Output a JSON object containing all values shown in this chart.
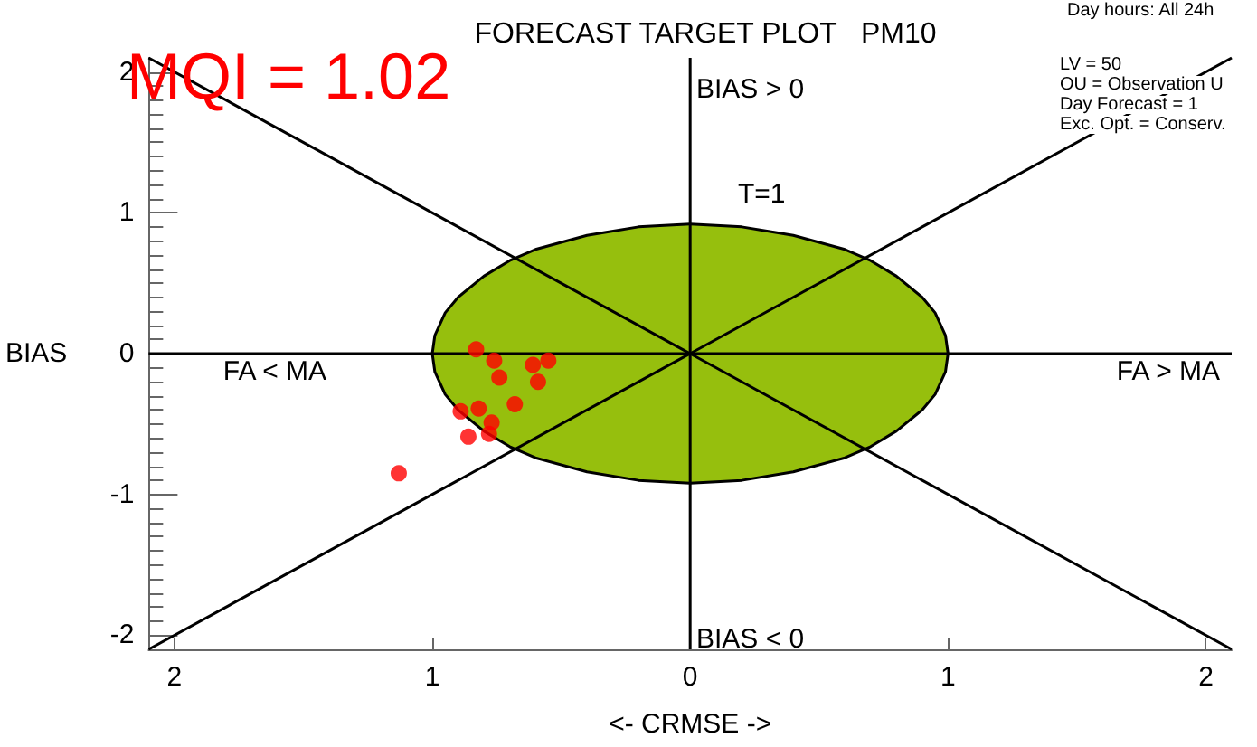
{
  "chart_data": {
    "type": "scatter",
    "title": "FORECAST TARGET PLOT   PM10",
    "xlabel": "<- CRMSE ->",
    "ylabel": "BIAS",
    "annotations": [
      "MQI = 1.02",
      "BIAS > 0",
      "T=1",
      "FA < MA",
      "FA > MA",
      "BIAS < 0",
      "LV = 50",
      "OU = Observation U",
      "Day Forecast = 1",
      "Exc. Opt. = Conserv.",
      "Day hours: All 24h"
    ],
    "xlim": [
      -2.1,
      2.1
    ],
    "ylim": [
      -2.1,
      2.1
    ],
    "xticks": [
      {
        "value": -2,
        "label": "2"
      },
      {
        "value": -1,
        "label": "1"
      },
      0,
      1,
      2
    ],
    "yticks": [
      -2,
      -1,
      0,
      1,
      2
    ],
    "grid": false,
    "series": [
      {
        "type": "area",
        "color": "#96bf0d",
        "marker": "none",
        "x": [
          -1,
          -0.99,
          -0.95,
          -0.9,
          -0.8,
          -0.7,
          -0.6,
          -0.4,
          -0.2,
          0,
          0.2,
          0.4,
          0.6,
          0.7,
          0.8,
          0.9,
          0.95,
          0.99,
          1
        ],
        "values": [
          0,
          0.13,
          0.29,
          0.4,
          0.55,
          0.66,
          0.74,
          0.84,
          0.9,
          0.92,
          0.9,
          0.84,
          0.74,
          0.66,
          0.55,
          0.4,
          0.29,
          0.13,
          0
        ]
      },
      {
        "type": "area",
        "color": "#96bf0d",
        "marker": "none",
        "x": [
          -1,
          -0.99,
          -0.95,
          -0.9,
          -0.8,
          -0.7,
          -0.6,
          -0.4,
          -0.2,
          0,
          0.2,
          0.4,
          0.6,
          0.7,
          0.8,
          0.9,
          0.95,
          0.99,
          1
        ],
        "values": [
          0,
          -0.13,
          -0.29,
          -0.4,
          -0.55,
          -0.66,
          -0.74,
          -0.84,
          -0.9,
          -0.92,
          -0.9,
          -0.84,
          -0.74,
          -0.66,
          -0.55,
          -0.4,
          -0.29,
          -0.13,
          0
        ]
      },
      {
        "type": "line",
        "color": "#000000",
        "marker": "none",
        "x": [
          -2.1,
          2.1
        ],
        "values": [
          -2.1,
          2.1
        ]
      },
      {
        "type": "line",
        "color": "#000000",
        "marker": "none",
        "x": [
          -2.1,
          2.1
        ],
        "values": [
          2.1,
          -2.1
        ]
      },
      {
        "type": "line",
        "color": "#000000",
        "marker": "none",
        "x": [
          0,
          0
        ],
        "values": [
          -2.1,
          2.1
        ]
      },
      {
        "type": "line",
        "color": "#000000",
        "marker": "none",
        "x": [
          -2.1,
          2.1
        ],
        "values": [
          0,
          0
        ]
      },
      {
        "color": "#ff0000",
        "marker": "circle",
        "x": [
          -0.83,
          -0.76,
          -0.61,
          -0.55,
          -0.74,
          -0.59,
          -0.68,
          -0.89,
          -0.82,
          -0.77,
          -0.86,
          -0.78,
          -1.13
        ],
        "values": [
          0.03,
          -0.05,
          -0.08,
          -0.05,
          -0.17,
          -0.2,
          -0.36,
          -0.41,
          -0.39,
          -0.49,
          -0.59,
          -0.57,
          -0.85
        ]
      }
    ]
  }
}
